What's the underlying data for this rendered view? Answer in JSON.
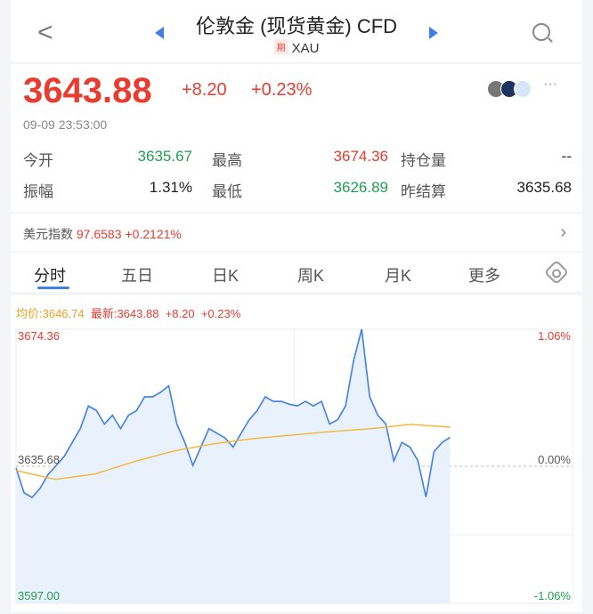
{
  "header": {
    "title": "伦敦金 (现货黄金) CFD",
    "badge": "期",
    "code": "XAU",
    "icons": [
      "back-icon",
      "prev-triangle-icon",
      "next-triangle-icon",
      "search-icon"
    ]
  },
  "quote": {
    "price": "3643.88",
    "change": "+8.20",
    "change_pct": "+0.23%",
    "time": "09-09 23:53:00",
    "stats": [
      {
        "label": "今开",
        "value": "3635.67",
        "color": "green"
      },
      {
        "label": "最高",
        "value": "3674.36",
        "color": "red"
      },
      {
        "label": "持仓量",
        "value": "--",
        "color": "black"
      },
      {
        "label": "振幅",
        "value": "1.31%",
        "color": "black"
      },
      {
        "label": "最低",
        "value": "3626.89",
        "color": "green"
      },
      {
        "label": "昨结算",
        "value": "3635.68",
        "color": "black"
      }
    ]
  },
  "index_bar": {
    "label": "美元指数",
    "value": "97.6583",
    "change": "+0.2121%"
  },
  "tabs": [
    {
      "label": "分时",
      "active": true
    },
    {
      "label": "五日"
    },
    {
      "label": "日K"
    },
    {
      "label": "周K"
    },
    {
      "label": "月K"
    },
    {
      "label": "更多"
    }
  ],
  "colors": {
    "up": "#ea3b2f",
    "down": "#1ea04d",
    "line": "#3f7fe6",
    "avg": "#f2b632"
  },
  "chart_data": {
    "type": "line",
    "legend": {
      "avg": "均价:3646.74",
      "latest": "最新:3643.88",
      "change": "+8.20",
      "change_pct": "+0.23%"
    },
    "ylim": [
      3597.0,
      3674.36
    ],
    "prev_close": 3635.68,
    "y_labels": {
      "top": "3674.36",
      "mid": "3635.68",
      "bottom": "3597.00",
      "top_pct": "1.06%",
      "mid_pct": "0.00%",
      "bottom_pct": "-1.06%"
    },
    "prices": [
      3635.2,
      3628.2,
      3626.9,
      3629.5,
      3633.4,
      3635.9,
      3638.5,
      3642.4,
      3646.3,
      3652.7,
      3651.4,
      3647.6,
      3650.1,
      3646.3,
      3650.1,
      3651.4,
      3655.3,
      3655.3,
      3656.6,
      3658.4,
      3647.6,
      3642.4,
      3635.9,
      3641.1,
      3646.3,
      3645.0,
      3643.7,
      3641.1,
      3645.0,
      3648.8,
      3651.4,
      3655.3,
      3654.0,
      3654.0,
      3653.2,
      3652.7,
      3654.0,
      3652.7,
      3654.0,
      3647.6,
      3648.8,
      3652.7,
      3665.6,
      3674.36,
      3655.3,
      3650.1,
      3647.6,
      3637.2,
      3642.4,
      3641.1,
      3637.2,
      3627.0,
      3639.8,
      3642.4,
      3643.88
    ],
    "avg_prices": [
      3634.5,
      3632.0,
      3633.5,
      3637.0,
      3640.0,
      3642.0,
      3643.5,
      3644.5,
      3645.5,
      3646.3,
      3647.5,
      3646.74
    ]
  }
}
